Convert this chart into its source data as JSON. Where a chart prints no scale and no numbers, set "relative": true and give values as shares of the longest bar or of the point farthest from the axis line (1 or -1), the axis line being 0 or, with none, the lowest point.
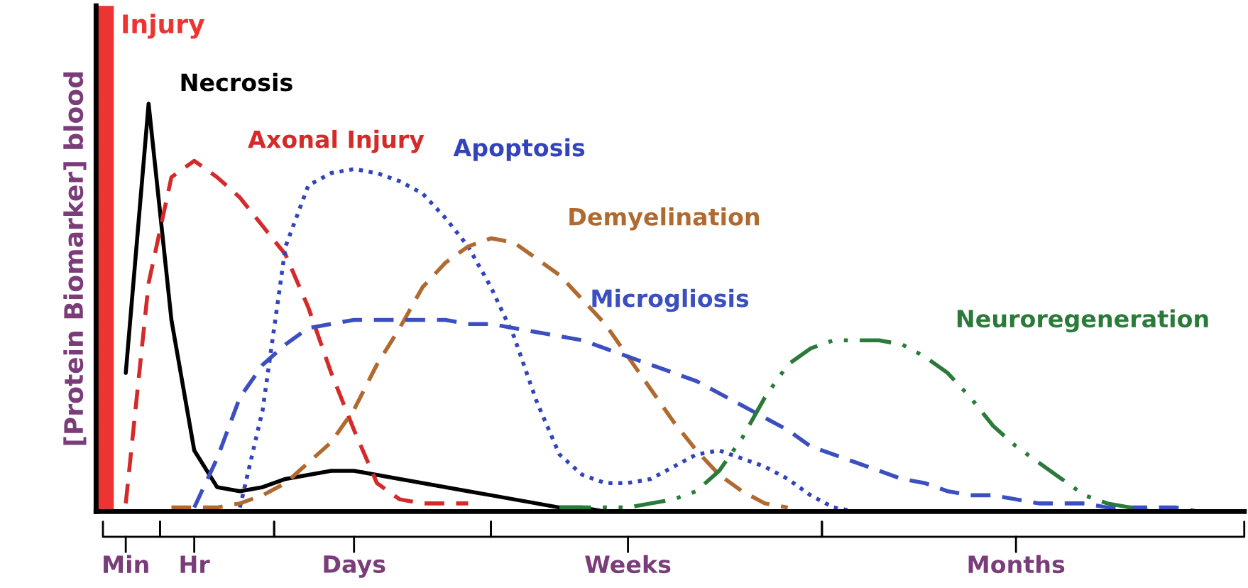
{
  "chart_data": {
    "type": "line",
    "relative": true,
    "ylabel": "[Protein Biomarker] blood",
    "categories": [
      null,
      "Min",
      null,
      null,
      "Hr",
      null,
      null,
      null,
      null,
      null,
      null,
      "Days",
      null,
      null,
      null,
      null,
      null,
      null,
      null,
      null,
      null,
      null,
      null,
      "Weeks",
      null,
      null,
      null,
      null,
      null,
      null,
      null,
      null,
      null,
      null,
      null,
      null,
      null,
      null,
      null,
      null,
      "Months",
      null,
      null,
      null,
      null,
      null,
      null,
      null,
      null,
      null,
      null
    ],
    "grid": false,
    "legend": false,
    "marker": "none",
    "annotations": [
      "Injury"
    ],
    "series": [
      {
        "name": "Necrosis",
        "color": "#000000",
        "line_style": "solid",
        "values": [
          null,
          0.34,
          1.0,
          0.47,
          0.15,
          0.06,
          0.05,
          0.06,
          0.08,
          0.09,
          0.1,
          0.1,
          0.09,
          0.08,
          0.07,
          0.06,
          0.05,
          0.04,
          0.03,
          0.02,
          0.01,
          0.01,
          0,
          0,
          null,
          null,
          null,
          null,
          null,
          null,
          null,
          null,
          null,
          null,
          null,
          null,
          null,
          null,
          null,
          null,
          null,
          null,
          null,
          null,
          null,
          null,
          null,
          null,
          null,
          null,
          null
        ]
      },
      {
        "name": "Axonal Injury",
        "color": "#d42a2a",
        "line_style": "dashed",
        "values": [
          null,
          0.02,
          0.56,
          0.82,
          0.86,
          0.82,
          0.77,
          0.7,
          0.63,
          0.5,
          0.34,
          0.2,
          0.07,
          0.03,
          0.02,
          0.02,
          0.02,
          null,
          null,
          null,
          null,
          null,
          null,
          null,
          null,
          null,
          null,
          null,
          null,
          null,
          null,
          null,
          null,
          null,
          null,
          null,
          null,
          null,
          null,
          null,
          null,
          null,
          null,
          null,
          null,
          null,
          null,
          null,
          null,
          null,
          null
        ]
      },
      {
        "name": "Apoptosis",
        "color": "#3344bb",
        "line_style": "dotted",
        "values": [
          null,
          null,
          null,
          null,
          null,
          null,
          0.01,
          0.25,
          0.65,
          0.8,
          0.83,
          0.84,
          0.83,
          0.81,
          0.78,
          0.72,
          0.65,
          0.55,
          0.43,
          0.27,
          0.14,
          0.09,
          0.07,
          0.07,
          0.08,
          0.11,
          0.14,
          0.15,
          0.13,
          0.11,
          0.08,
          0.04,
          0.01,
          0,
          0,
          null,
          null,
          null,
          null,
          null,
          null,
          null,
          null,
          null,
          null,
          null,
          null,
          null,
          null,
          null,
          null
        ]
      },
      {
        "name": "Demyelination",
        "color": "#b06a30",
        "line_style": "dashed",
        "values": [
          null,
          null,
          null,
          0.01,
          0.01,
          0.01,
          0.02,
          0.04,
          0.07,
          0.12,
          0.17,
          0.25,
          0.36,
          0.45,
          0.55,
          0.61,
          0.65,
          0.67,
          0.66,
          0.62,
          0.58,
          0.52,
          0.46,
          0.38,
          0.3,
          0.22,
          0.15,
          0.09,
          0.05,
          0.02,
          0.01,
          null,
          null,
          null,
          null,
          null,
          null,
          null,
          null,
          null,
          null,
          null,
          null,
          null,
          null,
          null,
          null,
          null,
          null,
          null,
          null
        ]
      },
      {
        "name": "Microgliosis",
        "color": "#3b4fc0",
        "line_style": "dashed",
        "values": [
          null,
          null,
          null,
          null,
          0.01,
          0.13,
          0.28,
          0.36,
          0.41,
          0.45,
          0.46,
          0.47,
          0.47,
          0.47,
          0.47,
          0.47,
          0.46,
          0.46,
          0.45,
          0.44,
          0.43,
          0.42,
          0.4,
          0.38,
          0.36,
          0.34,
          0.32,
          0.29,
          0.26,
          0.23,
          0.2,
          0.16,
          0.14,
          0.12,
          0.1,
          0.08,
          0.07,
          0.05,
          0.04,
          0.04,
          0.03,
          0.02,
          0.02,
          0.02,
          0.01,
          0.01,
          0.01,
          0.01,
          0,
          0,
          0
        ]
      },
      {
        "name": "Neuroregeneration",
        "color": "#2a7a3a",
        "line_style": "dashdot",
        "values": [
          null,
          null,
          null,
          null,
          null,
          null,
          null,
          null,
          null,
          null,
          null,
          null,
          null,
          null,
          null,
          null,
          null,
          null,
          null,
          null,
          0.01,
          0.01,
          0.01,
          0.01,
          0.02,
          0.03,
          0.05,
          0.1,
          0.18,
          0.28,
          0.36,
          0.4,
          0.42,
          0.42,
          0.42,
          0.41,
          0.38,
          0.34,
          0.28,
          0.21,
          0.16,
          0.12,
          0.08,
          0.04,
          0.02,
          0.01,
          0,
          null,
          null,
          null,
          null
        ]
      }
    ]
  }
}
